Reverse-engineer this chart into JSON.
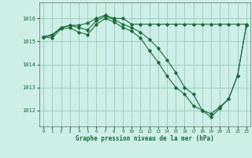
{
  "title": "Graphe pression niveau de la mer (hPa)",
  "bg_color": "#ceeee8",
  "grid_color": "#99ccbb",
  "line_color": "#1a6b3a",
  "xlim": [
    -0.5,
    23.5
  ],
  "ylim": [
    1011.3,
    1016.7
  ],
  "yticks": [
    1012,
    1013,
    1014,
    1015,
    1016
  ],
  "xticks": [
    0,
    1,
    2,
    3,
    4,
    5,
    6,
    7,
    8,
    9,
    10,
    11,
    12,
    13,
    14,
    15,
    16,
    17,
    18,
    19,
    20,
    21,
    22,
    23
  ],
  "hours": [
    0,
    1,
    2,
    3,
    4,
    5,
    6,
    7,
    8,
    9,
    10,
    11,
    12,
    13,
    14,
    15,
    16,
    17,
    18,
    19,
    20,
    21,
    22,
    23
  ],
  "line1": [
    1015.2,
    1015.3,
    1015.6,
    1015.7,
    1015.7,
    1015.8,
    1016.0,
    1016.15,
    1016.0,
    1016.0,
    1015.75,
    1015.75,
    1015.75,
    1015.75,
    1015.75,
    1015.75,
    1015.75,
    1015.75,
    1015.75,
    1015.75,
    1015.75,
    1015.75,
    1015.75,
    1015.75
  ],
  "line2": [
    1015.2,
    1015.15,
    1015.55,
    1015.6,
    1015.4,
    1015.3,
    1015.75,
    1016.0,
    1015.85,
    1015.6,
    1015.45,
    1015.15,
    1014.6,
    1014.1,
    1013.5,
    1013.0,
    1012.7,
    1012.2,
    1012.0,
    1011.7,
    1012.1,
    1012.5,
    1013.5,
    1015.7
  ],
  "line3": [
    1015.2,
    1015.25,
    1015.6,
    1015.7,
    1015.6,
    1015.5,
    1015.9,
    1016.1,
    1015.95,
    1015.75,
    1015.6,
    1015.4,
    1015.1,
    1014.7,
    1014.2,
    1013.65,
    1013.0,
    1012.7,
    1012.0,
    1011.85,
    1012.15,
    1012.5,
    1013.5,
    1015.7
  ]
}
